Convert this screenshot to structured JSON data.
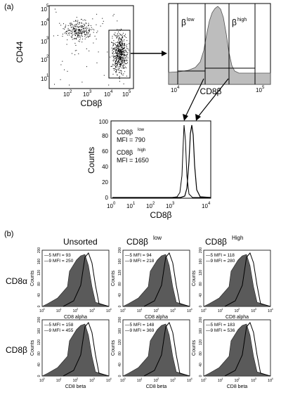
{
  "panel_a": {
    "label": "(a)",
    "scatter": {
      "ylabel": "CD44",
      "xlabel": "CD8β",
      "yticks": [
        "10",
        "1",
        "2",
        "3",
        "4",
        "5"
      ],
      "xticks": [
        "10",
        "2",
        "10",
        "3",
        "10",
        "4",
        "10",
        "5"
      ]
    },
    "gate_hist": {
      "xlabel": "CD8β",
      "gate_low_label": "β",
      "gate_low_sup": "low",
      "gate_high_label": "β",
      "gate_high_sup": "high",
      "xticks": [
        "10",
        "4",
        "10",
        "5"
      ]
    },
    "overlay": {
      "ylabel": "Counts",
      "xlabel": "CD8β",
      "legend_low_name": "CD8β",
      "legend_low_sup": "low",
      "legend_low_mfi": "MFI = 790",
      "legend_high_name": "CD8β",
      "legend_high_sup": "high",
      "legend_high_mfi": "MFI = 1650",
      "yticks": [
        "0",
        "20",
        "40",
        "60",
        "80",
        "100"
      ],
      "xticks": [
        "10",
        "0",
        "10",
        "1",
        "10",
        "2",
        "10",
        "3",
        "10",
        "4"
      ]
    }
  },
  "panel_b": {
    "label": "(b)",
    "col_unsorted": "Unsorted",
    "col_low_name": "CD8β",
    "col_low_sup": "low",
    "col_high_name": "CD8β",
    "col_high_sup": "High",
    "row_alpha": "CD8α",
    "row_beta": "CD8β",
    "ylabel": "Counts",
    "yticks": [
      "0",
      "40",
      "80",
      "120",
      "160",
      "200"
    ],
    "xlabel_alpha": "CD8 alpha",
    "xlabel_beta": "CD8 beta",
    "xticks": [
      "10",
      "0",
      "10",
      "1",
      "10",
      "2",
      "10",
      "3",
      "10",
      "4"
    ],
    "mfi": {
      "a_unsorted": [
        "—5 MFI = 93",
        "—9 MFI = 250"
      ],
      "a_low": [
        "—5 MFI = 94",
        "—9 MFI = 218"
      ],
      "a_high": [
        "—5 MFI = 118",
        "—9 MFI = 280"
      ],
      "b_unsorted": [
        "—5 MFI = 158",
        "—9 MFI = 455"
      ],
      "b_low": [
        "—5 MFI = 148",
        "—9 MFI = 369"
      ],
      "b_high": [
        "—5 MFI = 183",
        "—9 MFI = 536"
      ]
    }
  },
  "colors": {
    "fill_gray": "#bdbdbd",
    "fill_dark": "#5a5a5a",
    "line": "#000000"
  }
}
